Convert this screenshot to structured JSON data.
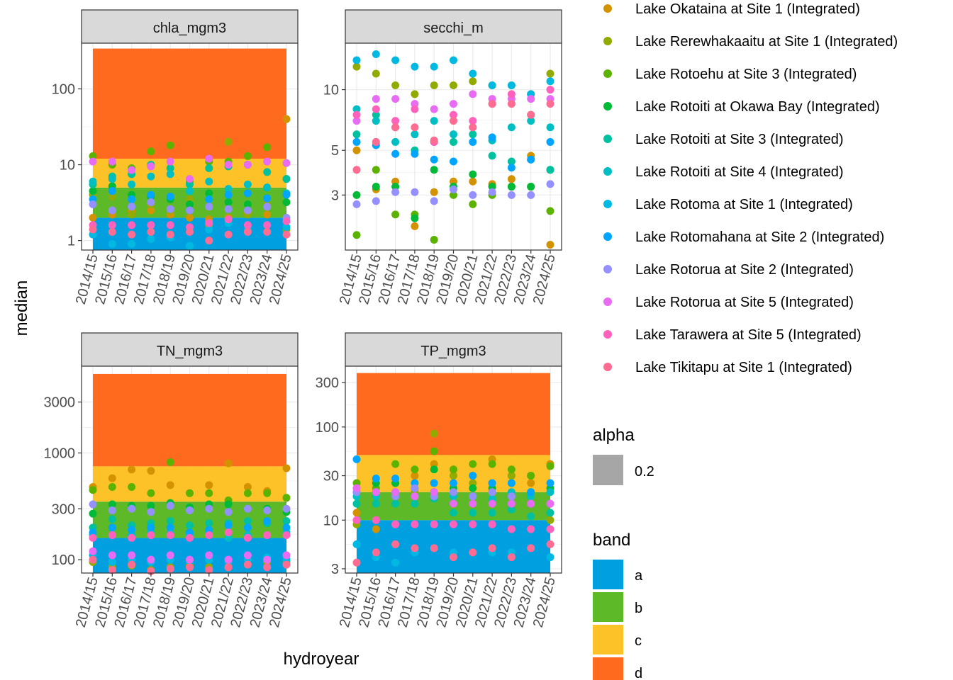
{
  "chart_data": {
    "type": "scatter",
    "xlabel": "hydroyear",
    "ylabel": "median",
    "categories": [
      "2014/15",
      "2015/16",
      "2016/17",
      "2017/18",
      "2018/19",
      "2019/20",
      "2020/21",
      "2021/22",
      "2022/23",
      "2023/24",
      "2024/25"
    ],
    "y_scale": "log",
    "grid": true,
    "legend_position": "right",
    "panels": [
      {
        "name": "chla_mgm3",
        "ylim": [
          0.75,
          400
        ],
        "yticks": [
          1,
          10,
          100
        ],
        "ytick_labels": [
          "1",
          "10",
          "100"
        ],
        "bands": [
          {
            "band": "a",
            "from": 0.75,
            "to": 2
          },
          {
            "band": "b",
            "from": 2,
            "to": 5
          },
          {
            "band": "c",
            "from": 5,
            "to": 12
          },
          {
            "band": "d",
            "from": 12,
            "to": 340
          }
        ],
        "values": [
          [
            2.0,
            2.2,
            2.4,
            2.5,
            2.2,
            2.0,
            1.9,
            2.0,
            2.3,
            2.2,
            40
          ],
          [
            4.0,
            3.8,
            2.2,
            3.0,
            2.5,
            3.5,
            1.6,
            20,
            2.2,
            3.2,
            1.4
          ],
          [
            13,
            10,
            9.0,
            15,
            18,
            6.0,
            11,
            11,
            13,
            17,
            6.5
          ],
          [
            4.5,
            5.2,
            4.0,
            3.8,
            3.5,
            3.0,
            4.2,
            3.2,
            3.0,
            5.0,
            3.2
          ],
          [
            5.5,
            7.0,
            7.5,
            10,
            9.0,
            5.5,
            9.0,
            9.5,
            10,
            8.0,
            6.5
          ],
          [
            6.0,
            6.5,
            5.5,
            7.0,
            7.5,
            4.5,
            6.0,
            4.8,
            5.5,
            5.0,
            4.2
          ],
          [
            1.2,
            0.9,
            0.9,
            1.05,
            1.1,
            0.85,
            1.4,
            1.7,
            1.4,
            1.6,
            1.5
          ],
          [
            3.5,
            4.5,
            3.5,
            4.0,
            3.8,
            2.5,
            3.5,
            4.0,
            4.2,
            3.6,
            4.0
          ],
          [
            3.0,
            2.5,
            2.8,
            3.2,
            2.6,
            2.5,
            2.8,
            2.6,
            2.5,
            2.8,
            2.0
          ],
          [
            11,
            11,
            8.5,
            9.5,
            11,
            6.5,
            12,
            10,
            10,
            11,
            10.5
          ],
          [
            1.6,
            1.6,
            1.6,
            1.6,
            1.6,
            1.5,
            1.7,
            1.9,
            1.6,
            1.6,
            1.8
          ],
          [
            1.4,
            1.3,
            1.2,
            1.3,
            1.2,
            1.3,
            1.0,
            1.2,
            1.3,
            1.3,
            1.2
          ]
        ]
      },
      {
        "name": "secchi_m",
        "ylim": [
          1.6,
          17
        ],
        "yticks": [
          3,
          5,
          10
        ],
        "ytick_labels": [
          "3",
          "5",
          "10"
        ],
        "bands": [],
        "values": [
          [
            5.0,
            3.2,
            3.5,
            2.1,
            3.1,
            3.5,
            3.5,
            3.4,
            3.6,
            4.7,
            1.7
          ],
          [
            13,
            12,
            10.5,
            9.5,
            10.5,
            10.5,
            11,
            10.5,
            10.5,
            9.5,
            12
          ],
          [
            1.9,
            4.0,
            2.4,
            2.4,
            1.8,
            3.0,
            2.7,
            3.0,
            3.3,
            3.3,
            2.5
          ],
          [
            3.0,
            3.3,
            3.3,
            2.3,
            4.0,
            3.3,
            3.8,
            3.3,
            3.3,
            3.3,
            4.0
          ],
          [
            6.0,
            7.5,
            6.5,
            5.0,
            5.5,
            5.5,
            6.0,
            4.7,
            4.4,
            4.5,
            4.0
          ],
          [
            8.0,
            7.0,
            5.5,
            6.0,
            7.0,
            6.0,
            6.5,
            5.6,
            6.5,
            7.0,
            6.5
          ],
          [
            14,
            15,
            14,
            13,
            13,
            14,
            12,
            10.5,
            10.5,
            9.5,
            11
          ],
          [
            5.5,
            5.3,
            4.8,
            4.8,
            4.5,
            4.4,
            5.5,
            5.8,
            4.1,
            4.5,
            5.5
          ],
          [
            2.7,
            2.8,
            3.1,
            3.1,
            2.8,
            3.2,
            3.0,
            3.1,
            3.0,
            3.0,
            3.4
          ],
          [
            7.0,
            9.0,
            9.0,
            8.5,
            8.0,
            8.5,
            9.5,
            9.0,
            9.0,
            9.0,
            9.0
          ],
          [
            7.5,
            8.0,
            7.0,
            8.0,
            5.5,
            7.5,
            7.0,
            8.5,
            9.5,
            7.5,
            10
          ],
          [
            4.0,
            5.5,
            6.5,
            6.5,
            5.6,
            7.0,
            6.5,
            8.5,
            8.5,
            7.5,
            8.5
          ]
        ]
      },
      {
        "name": "TN_mgm3",
        "ylim": [
          75,
          6500
        ],
        "yticks": [
          100,
          300,
          1000,
          3000
        ],
        "ytick_labels": [
          "100",
          "300",
          "1000",
          "3000"
        ],
        "bands": [
          {
            "band": "a",
            "from": 75,
            "to": 160
          },
          {
            "band": "b",
            "from": 160,
            "to": 350
          },
          {
            "band": "c",
            "from": 350,
            "to": 750
          },
          {
            "band": "d",
            "from": 750,
            "to": 5500
          }
        ],
        "values": [
          [
            480,
            580,
            700,
            680,
            500,
            420,
            500,
            800,
            480,
            440,
            720
          ],
          [
            95,
            85,
            88,
            80,
            85,
            88,
            85,
            85,
            90,
            95,
            95
          ],
          [
            450,
            480,
            480,
            420,
            820,
            420,
            420,
            360,
            420,
            420,
            380
          ],
          [
            270,
            330,
            320,
            320,
            340,
            310,
            330,
            330,
            300,
            300,
            280
          ],
          [
            200,
            240,
            210,
            220,
            230,
            210,
            220,
            220,
            230,
            220,
            230
          ],
          [
            170,
            170,
            170,
            180,
            175,
            170,
            180,
            160,
            170,
            170,
            180
          ],
          [
            110,
            95,
            100,
            95,
            100,
            95,
            100,
            95,
            100,
            105,
            100
          ],
          [
            180,
            200,
            190,
            200,
            200,
            180,
            190,
            210,
            200,
            230,
            200
          ],
          [
            330,
            290,
            300,
            280,
            320,
            290,
            300,
            280,
            300,
            290,
            300
          ],
          [
            120,
            110,
            110,
            100,
            110,
            100,
            110,
            100,
            110,
            100,
            110
          ],
          [
            160,
            170,
            160,
            170,
            170,
            160,
            170,
            180,
            160,
            170,
            170
          ],
          [
            100,
            80,
            90,
            78,
            82,
            85,
            80,
            85,
            90,
            85,
            90
          ]
        ]
      },
      {
        "name": "TP_mgm3",
        "ylim": [
          2.7,
          450
        ],
        "yticks": [
          3,
          10,
          30,
          100,
          300
        ],
        "ytick_labels": [
          "3",
          "10",
          "30",
          "100",
          "300"
        ],
        "bands": [
          {
            "band": "a",
            "from": 2.7,
            "to": 10
          },
          {
            "band": "b",
            "from": 10,
            "to": 20
          },
          {
            "band": "c",
            "from": 20,
            "to": 50
          },
          {
            "band": "d",
            "from": 50,
            "to": 380
          }
        ],
        "values": [
          [
            12,
            8.0,
            9.0,
            30,
            40,
            35,
            30,
            45,
            30,
            25,
            40
          ],
          [
            9.0,
            10,
            25,
            20,
            85,
            30,
            25,
            25,
            30,
            30,
            10
          ],
          [
            25,
            22,
            40,
            35,
            55,
            35,
            40,
            40,
            35,
            30,
            38
          ],
          [
            20,
            25,
            25,
            22,
            35,
            22,
            22,
            22,
            25,
            20,
            22
          ],
          [
            15,
            15,
            15,
            15,
            17,
            12,
            12,
            12,
            13,
            11,
            12
          ],
          [
            18,
            18,
            20,
            18,
            20,
            18,
            18,
            17,
            20,
            18,
            20
          ],
          [
            5.5,
            4.0,
            3.5,
            4.5,
            5.0,
            4.5,
            4.5,
            4.5,
            4.5,
            5.0,
            4.0
          ],
          [
            45,
            28,
            28,
            25,
            25,
            25,
            30,
            25,
            25,
            20,
            25
          ],
          [
            20,
            20,
            18,
            22,
            18,
            20,
            18,
            20,
            18,
            15,
            15
          ],
          [
            22,
            20,
            20,
            18,
            20,
            15,
            15,
            15,
            15,
            15,
            15
          ],
          [
            10,
            10,
            9.0,
            9.0,
            9.0,
            9.0,
            9.0,
            9.0,
            8.0,
            8.0,
            8.0
          ],
          [
            3.5,
            4.5,
            5.5,
            5.0,
            5.0,
            4.0,
            4.5,
            5.0,
            4.0,
            5.0,
            5.5
          ]
        ]
      }
    ],
    "series": [
      {
        "name": "Lake Okataina at Site 1 (Integrated)",
        "color": "#D39200"
      },
      {
        "name": "Lake Rerewhakaaitu at Site 1 (Integrated)",
        "color": "#93AA00"
      },
      {
        "name": "Lake Rotoehu at Site 3 (Integrated)",
        "color": "#5BB300"
      },
      {
        "name": "Lake Rotoiti at Okawa Bay (Integrated)",
        "color": "#00BA38"
      },
      {
        "name": "Lake Rotoiti at Site 3 (Integrated)",
        "color": "#00C19F"
      },
      {
        "name": "Lake Rotoiti at Site 4 (Integrated)",
        "color": "#00BFC4"
      },
      {
        "name": "Lake Rotoma at Site 1 (Integrated)",
        "color": "#00B9E3"
      },
      {
        "name": "Lake Rotomahana at Site 2 (Integrated)",
        "color": "#00A5FF"
      },
      {
        "name": "Lake Rotorua at Site 2 (Integrated)",
        "color": "#9590FF"
      },
      {
        "name": "Lake Rotorua at Site 5 (Integrated)",
        "color": "#E76BF3"
      },
      {
        "name": "Lake Tarawera at Site 5 (Integrated)",
        "color": "#FF62BC"
      },
      {
        "name": "Lake Tikitapu at Site 1 (Integrated)",
        "color": "#FF6C91"
      }
    ],
    "alpha_legend": {
      "title": "alpha",
      "label": "0.2",
      "color": "#a6a6a6"
    },
    "band_legend": {
      "title": "band",
      "items": [
        {
          "label": "a",
          "color": "#00A0E0"
        },
        {
          "label": "b",
          "color": "#5DB927"
        },
        {
          "label": "c",
          "color": "#FDC227"
        },
        {
          "label": "d",
          "color": "#FF6A1E"
        }
      ]
    }
  }
}
